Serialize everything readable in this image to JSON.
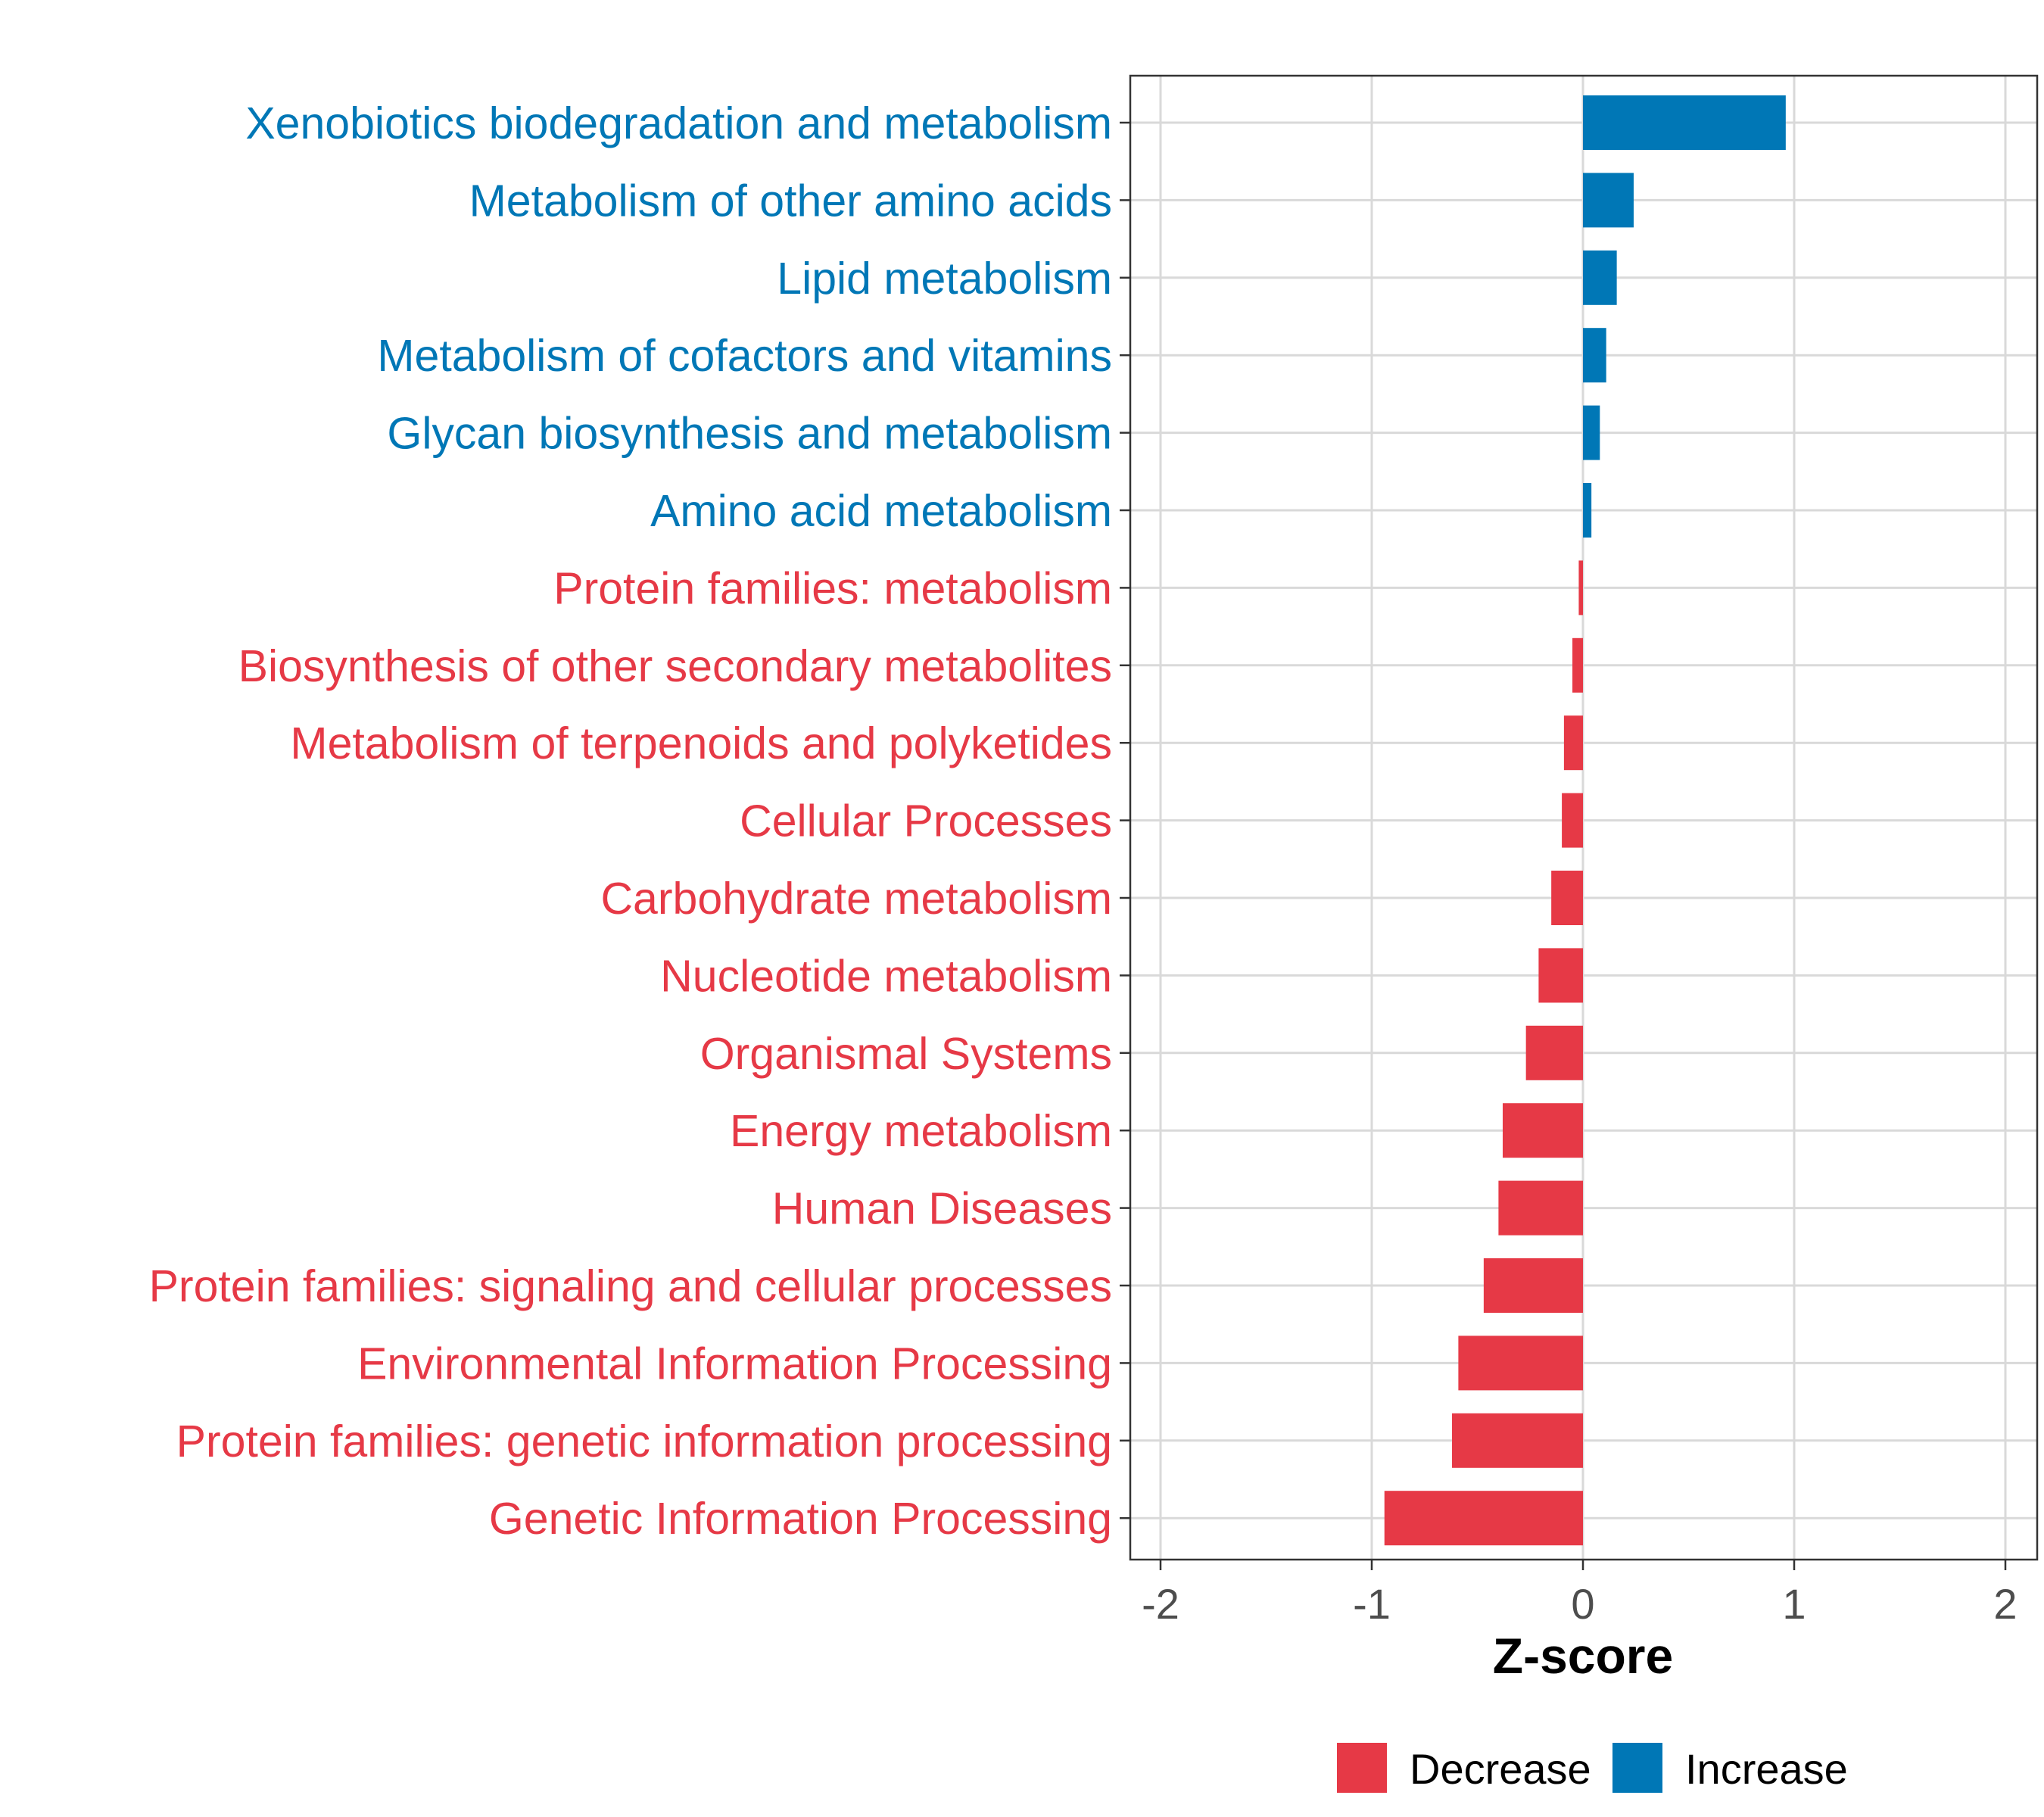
{
  "chart_data": {
    "type": "bar",
    "orientation": "horizontal",
    "title": "",
    "xlabel": "Z-score",
    "ylabel": "",
    "xlim": [
      -2.15,
      2.15
    ],
    "xticks": [
      -2,
      -1,
      0,
      1,
      2
    ],
    "xtick_labels": [
      "-2",
      "-1",
      "0",
      "1",
      "2"
    ],
    "grid": true,
    "legend_position": "bottom",
    "colors": {
      "Decrease": "#e63946",
      "Increase": "#0077b6"
    },
    "legend": [
      {
        "label": "Decrease",
        "color": "#e63946"
      },
      {
        "label": "Increase",
        "color": "#0077b6"
      }
    ],
    "bars": [
      {
        "label": "Xenobiotics biodegradation and metabolism",
        "value": 0.96,
        "group": "Increase"
      },
      {
        "label": "Metabolism of other amino acids",
        "value": 0.24,
        "group": "Increase"
      },
      {
        "label": "Lipid metabolism",
        "value": 0.16,
        "group": "Increase"
      },
      {
        "label": "Metabolism of cofactors and vitamins",
        "value": 0.11,
        "group": "Increase"
      },
      {
        "label": "Glycan biosynthesis and metabolism",
        "value": 0.08,
        "group": "Increase"
      },
      {
        "label": "Amino acid metabolism",
        "value": 0.04,
        "group": "Increase"
      },
      {
        "label": "Protein families: metabolism",
        "value": -0.02,
        "group": "Decrease"
      },
      {
        "label": "Biosynthesis of other secondary metabolites",
        "value": -0.05,
        "group": "Decrease"
      },
      {
        "label": "Metabolism of terpenoids and polyketides",
        "value": -0.09,
        "group": "Decrease"
      },
      {
        "label": "Cellular Processes",
        "value": -0.1,
        "group": "Decrease"
      },
      {
        "label": "Carbohydrate metabolism",
        "value": -0.15,
        "group": "Decrease"
      },
      {
        "label": "Nucleotide metabolism",
        "value": -0.21,
        "group": "Decrease"
      },
      {
        "label": "Organismal Systems",
        "value": -0.27,
        "group": "Decrease"
      },
      {
        "label": "Energy metabolism",
        "value": -0.38,
        "group": "Decrease"
      },
      {
        "label": "Human Diseases",
        "value": -0.4,
        "group": "Decrease"
      },
      {
        "label": "Protein families: signaling and cellular processes",
        "value": -0.47,
        "group": "Decrease"
      },
      {
        "label": "Environmental Information Processing",
        "value": -0.59,
        "group": "Decrease"
      },
      {
        "label": "Protein families: genetic information processing",
        "value": -0.62,
        "group": "Decrease"
      },
      {
        "label": "Genetic Information Processing",
        "value": -0.94,
        "group": "Decrease"
      }
    ]
  }
}
